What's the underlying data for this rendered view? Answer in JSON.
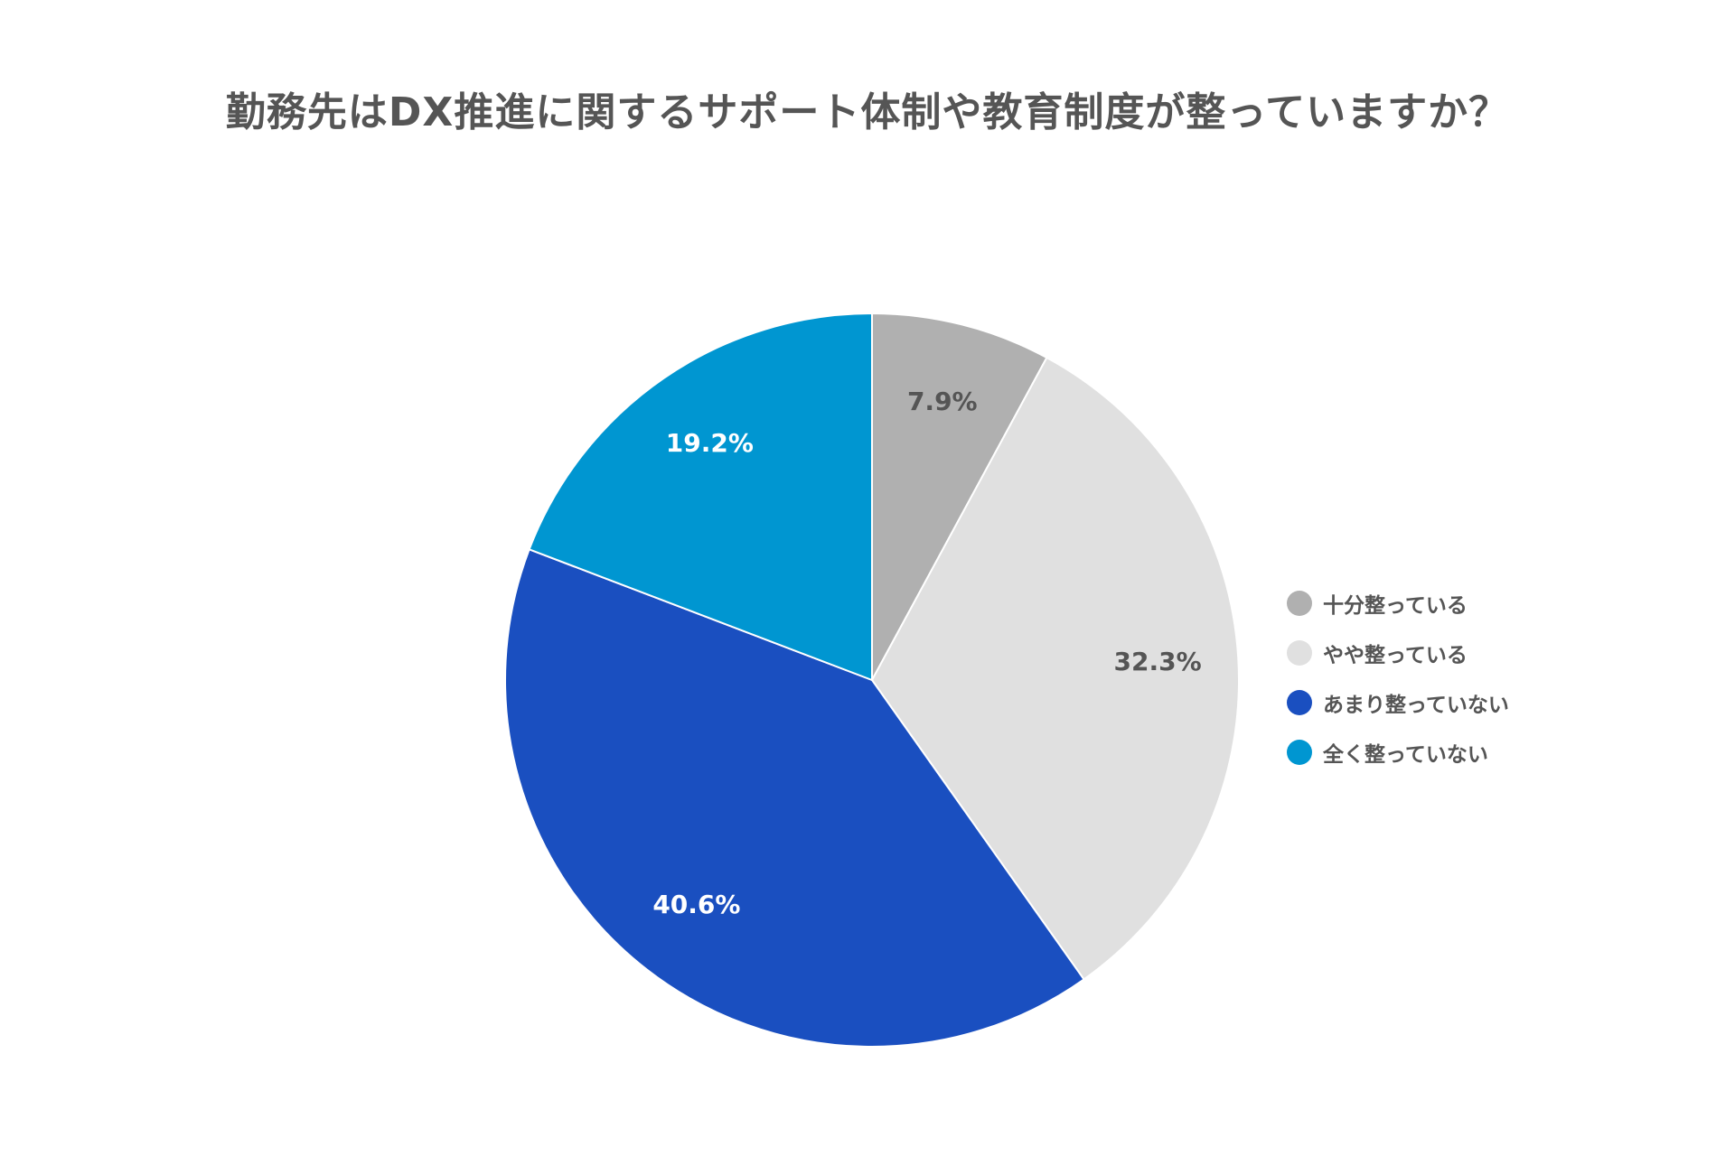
{
  "chart_data": {
    "type": "pie",
    "title": "勤務先はDX推進に関するサポート体制や教育制度が整っていますか？",
    "legend_position": "right",
    "categories": [
      "十分整っている",
      "やや整っている",
      "あまり整っていない",
      "全く整っていない"
    ],
    "values": [
      7.9,
      32.3,
      40.6,
      19.2
    ],
    "data_labels": [
      "7.9%",
      "32.3%",
      "40.6%",
      "19.2%"
    ],
    "colors": [
      "#b0b0b0",
      "#e0e0e0",
      "#1a4fc0",
      "#0096d1"
    ],
    "label_colors": [
      "#555555",
      "#555555",
      "#ffffff",
      "#ffffff"
    ]
  }
}
